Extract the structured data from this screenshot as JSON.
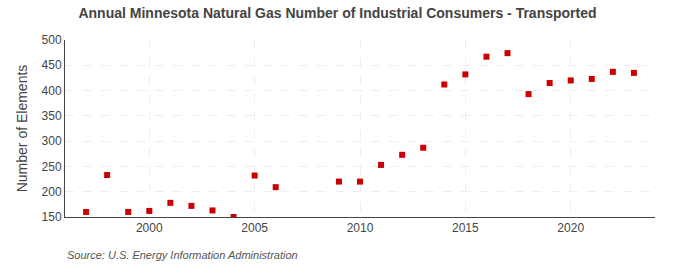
{
  "chart_data": {
    "type": "scatter",
    "title": "Annual Minnesota Natural Gas Number of Industrial Consumers - Transported",
    "ylabel": "Number of Elements",
    "annotations": [
      "Source: U.S. Energy Information Administration"
    ],
    "x": [
      1997,
      1998,
      1999,
      2000,
      2001,
      2002,
      2003,
      2004,
      2005,
      2006,
      2009,
      2010,
      2011,
      2012,
      2013,
      2014,
      2015,
      2016,
      2017,
      2018,
      2019,
      2020,
      2021,
      2022,
      2023
    ],
    "values": [
      160,
      233,
      160,
      162,
      178,
      172,
      163,
      150,
      232,
      209,
      220,
      220,
      253,
      273,
      287,
      412,
      432,
      467,
      474,
      393,
      415,
      420,
      423,
      437,
      435
    ],
    "color": "#cc0000",
    "marker": "square",
    "xlim": [
      1996,
      2024
    ],
    "xticks": [
      2000,
      2005,
      2010,
      2015,
      2020
    ],
    "ylim": [
      150,
      500
    ],
    "yticks": [
      150,
      200,
      250,
      300,
      350,
      400,
      450,
      500
    ],
    "grid": true
  }
}
